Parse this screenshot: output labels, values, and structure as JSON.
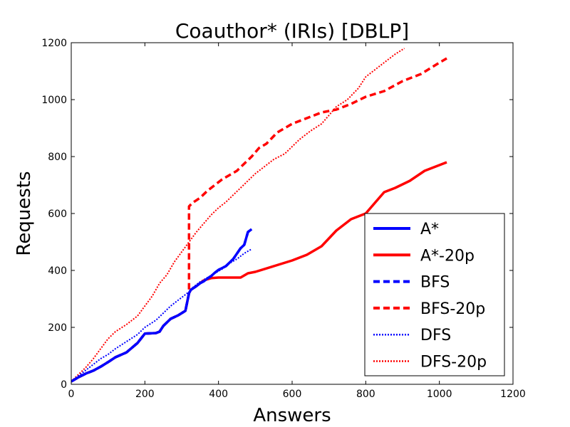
{
  "chart_data": {
    "type": "line",
    "title": "Coauthor* (IRIs) [DBLP]",
    "xlabel": "Answers",
    "ylabel": "Requests",
    "xlim": [
      0,
      1200
    ],
    "ylim": [
      0,
      1200
    ],
    "xticks": [
      "0",
      "200",
      "400",
      "600",
      "800",
      "1000",
      "1200"
    ],
    "yticks": [
      "0",
      "200",
      "400",
      "600",
      "800",
      "1000",
      "1200"
    ],
    "grid": false,
    "legend_position": "lower-right",
    "series": [
      {
        "name": "A*",
        "color": "#0000ff",
        "style": "solid",
        "x": [
          0,
          20,
          40,
          60,
          80,
          100,
          120,
          150,
          180,
          200,
          230,
          240,
          250,
          270,
          290,
          310,
          320,
          325,
          340,
          350,
          360,
          370,
          380,
          390,
          400,
          420,
          440,
          460,
          470,
          480,
          490
        ],
        "y": [
          10,
          25,
          38,
          48,
          62,
          78,
          95,
          112,
          145,
          178,
          180,
          185,
          205,
          230,
          242,
          258,
          320,
          332,
          345,
          355,
          362,
          372,
          380,
          392,
          402,
          415,
          440,
          478,
          490,
          535,
          545
        ]
      },
      {
        "name": "A*-20p",
        "color": "#ff0000",
        "style": "solid",
        "x": [
          0,
          20,
          40,
          60,
          80,
          100,
          120,
          150,
          180,
          200,
          230,
          240,
          250,
          270,
          290,
          310,
          320,
          325,
          340,
          350,
          360,
          380,
          400,
          420,
          440,
          460,
          480,
          500,
          550,
          600,
          640,
          680,
          720,
          760,
          800,
          830,
          850,
          880,
          920,
          960,
          1000,
          1020
        ],
        "y": [
          10,
          25,
          38,
          48,
          62,
          78,
          95,
          112,
          145,
          178,
          180,
          185,
          205,
          230,
          242,
          258,
          320,
          332,
          345,
          355,
          365,
          373,
          375,
          375,
          375,
          375,
          390,
          395,
          415,
          435,
          455,
          485,
          540,
          580,
          600,
          645,
          675,
          690,
          715,
          750,
          770,
          780
        ]
      },
      {
        "name": "BFS",
        "color": "#0000ff",
        "style": "dashed",
        "x": [
          0,
          20,
          40,
          60,
          80,
          100,
          120,
          150,
          180,
          200,
          230,
          240,
          250,
          270,
          290,
          310,
          320,
          325,
          340,
          350,
          360,
          370,
          380,
          390,
          400,
          420,
          440,
          460,
          470,
          480,
          490
        ],
        "y": [
          10,
          25,
          38,
          48,
          62,
          78,
          95,
          112,
          145,
          178,
          180,
          185,
          205,
          230,
          242,
          258,
          320,
          332,
          345,
          355,
          362,
          372,
          380,
          392,
          402,
          415,
          440,
          478,
          490,
          535,
          545
        ]
      },
      {
        "name": "BFS-20p",
        "color": "#ff0000",
        "style": "dashed",
        "x": [
          0,
          20,
          40,
          60,
          80,
          100,
          120,
          150,
          180,
          200,
          230,
          240,
          250,
          270,
          290,
          310,
          320,
          320,
          330,
          350,
          370,
          390,
          410,
          430,
          450,
          470,
          490,
          510,
          530,
          560,
          600,
          640,
          680,
          720,
          760,
          800,
          850,
          900,
          950,
          1000,
          1020
        ],
        "y": [
          10,
          25,
          38,
          48,
          62,
          78,
          95,
          112,
          145,
          178,
          180,
          185,
          205,
          230,
          242,
          258,
          320,
          625,
          638,
          655,
          680,
          700,
          720,
          735,
          750,
          775,
          800,
          830,
          845,
          885,
          915,
          935,
          955,
          965,
          985,
          1010,
          1030,
          1065,
          1090,
          1130,
          1145
        ]
      },
      {
        "name": "DFS",
        "color": "#0000ff",
        "style": "dotted",
        "x": [
          0,
          20,
          40,
          60,
          80,
          100,
          120,
          150,
          180,
          200,
          230,
          250,
          270,
          290,
          310,
          320,
          330,
          350,
          370,
          390,
          410,
          430,
          450,
          470,
          490
        ],
        "y": [
          10,
          30,
          50,
          70,
          90,
          105,
          125,
          150,
          175,
          200,
          225,
          250,
          275,
          295,
          315,
          325,
          340,
          360,
          375,
          390,
          405,
          425,
          440,
          460,
          475
        ]
      },
      {
        "name": "DFS-20p",
        "color": "#ff0000",
        "style": "dotted",
        "x": [
          0,
          20,
          40,
          60,
          80,
          100,
          120,
          150,
          180,
          200,
          220,
          240,
          260,
          280,
          300,
          320,
          340,
          360,
          380,
          400,
          420,
          440,
          460,
          480,
          500,
          520,
          550,
          580,
          600,
          620,
          650,
          680,
          700,
          720,
          750,
          780,
          800,
          830,
          860,
          880,
          905
        ],
        "y": [
          10,
          35,
          60,
          90,
          125,
          160,
          185,
          210,
          240,
          275,
          310,
          355,
          385,
          430,
          465,
          500,
          535,
          565,
          595,
          620,
          640,
          665,
          690,
          715,
          740,
          760,
          790,
          810,
          835,
          860,
          890,
          915,
          945,
          975,
          1000,
          1040,
          1080,
          1110,
          1140,
          1160,
          1180
        ]
      }
    ]
  }
}
